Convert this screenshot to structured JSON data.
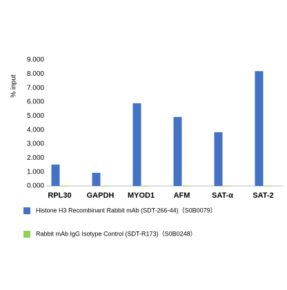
{
  "chart_data": {
    "type": "bar",
    "y_label": "% input",
    "categories": [
      "RPL30",
      "GAPDH",
      "MYOD1",
      "AFM",
      "SAT-α",
      "SAT-2"
    ],
    "series": [
      {
        "name": "Histone H3 Recombinant  Rabbit mAb (SDT-266-44)（S0B0079）",
        "color": "#4472c4",
        "values": [
          1.53,
          0.94,
          5.91,
          4.93,
          3.84,
          8.2
        ]
      },
      {
        "name": "Rabbit mAb IgG Isotype Control (SDT-R173)（S0B0248）",
        "color": "#92d050",
        "values": [
          0.02,
          0.02,
          0.02,
          0.02,
          0.02,
          0.02
        ]
      }
    ],
    "ylim": [
      0,
      9
    ],
    "yticks": [
      {
        "value": 0,
        "label": "0.000"
      },
      {
        "value": 1,
        "label": "1.000"
      },
      {
        "value": 2,
        "label": "2.000"
      },
      {
        "value": 3,
        "label": "3.000"
      },
      {
        "value": 4,
        "label": "4.000"
      },
      {
        "value": 5,
        "label": "5.000"
      },
      {
        "value": 6,
        "label": "6.000"
      },
      {
        "value": 7,
        "label": "7.000"
      },
      {
        "value": 8,
        "label": "8.000"
      },
      {
        "value": 9,
        "label": "9.000"
      }
    ],
    "grid": false
  }
}
